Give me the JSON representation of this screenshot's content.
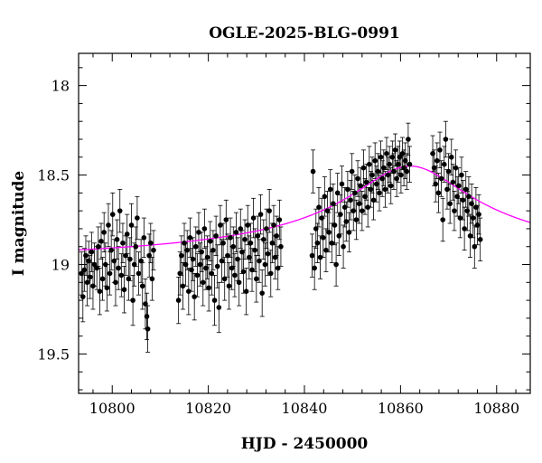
{
  "chart_data": {
    "type": "scatter",
    "title": "OGLE-2025-BLG-0991",
    "xlabel": "HJD - 2450000",
    "ylabel": "I magnitude",
    "xlim": [
      10793,
      10887
    ],
    "ylim": [
      19.72,
      17.82
    ],
    "y_inverted": true,
    "x_ticks": [
      10800,
      10820,
      10840,
      10860,
      10880
    ],
    "y_ticks": [
      18,
      18.5,
      19,
      19.5
    ],
    "x_tick_labels": [
      "10800",
      "10820",
      "10840",
      "10860",
      "10880"
    ],
    "y_tick_labels": [
      "18",
      "18.5",
      "19",
      "19.5"
    ],
    "grid": false,
    "marker_color": "#000000",
    "model_color": "#ff00ff",
    "series": [
      {
        "type": "scatter-errorbar",
        "points": [
          [
            10793.6,
            19.05,
            0.12
          ],
          [
            10793.9,
            19.18,
            0.14
          ],
          [
            10794.2,
            19.03,
            0.12
          ],
          [
            10794.5,
            18.95,
            0.11
          ],
          [
            10794.8,
            19.1,
            0.13
          ],
          [
            10795.1,
            18.98,
            0.11
          ],
          [
            10795.4,
            19.07,
            0.12
          ],
          [
            10795.7,
            18.93,
            0.11
          ],
          [
            10796.0,
            19.12,
            0.13
          ],
          [
            10796.3,
            19.0,
            0.12
          ],
          [
            10796.8,
            19.02,
            0.12
          ],
          [
            10797.1,
            18.9,
            0.11
          ],
          [
            10797.4,
            19.15,
            0.13
          ],
          [
            10797.7,
            18.87,
            0.1
          ],
          [
            10798.0,
            19.08,
            0.12
          ],
          [
            10798.3,
            18.82,
            0.11
          ],
          [
            10798.6,
            19.0,
            0.12
          ],
          [
            10798.9,
            19.13,
            0.13
          ],
          [
            10799.2,
            18.78,
            0.12
          ],
          [
            10799.5,
            19.05,
            0.12
          ],
          [
            10799.8,
            18.92,
            0.11
          ],
          [
            10800.1,
            18.72,
            0.12
          ],
          [
            10800.4,
            18.98,
            0.12
          ],
          [
            10800.7,
            19.1,
            0.13
          ],
          [
            10801.0,
            18.86,
            0.11
          ],
          [
            10801.3,
            19.02,
            0.12
          ],
          [
            10801.6,
            18.7,
            0.12
          ],
          [
            10801.9,
            19.06,
            0.12
          ],
          [
            10802.2,
            18.88,
            0.11
          ],
          [
            10802.5,
            19.14,
            0.13
          ],
          [
            10802.8,
            18.95,
            0.11
          ],
          [
            10803.1,
            18.83,
            0.11
          ],
          [
            10803.4,
            19.08,
            0.12
          ],
          [
            10803.7,
            18.97,
            0.12
          ],
          [
            10804.0,
            18.78,
            0.12
          ],
          [
            10804.3,
            19.2,
            0.14
          ],
          [
            10804.6,
            19.0,
            0.12
          ],
          [
            10804.9,
            18.9,
            0.11
          ],
          [
            10805.2,
            18.74,
            0.12
          ],
          [
            10805.5,
            19.05,
            0.12
          ],
          [
            10806.0,
            18.98,
            0.12
          ],
          [
            10806.3,
            19.12,
            0.13
          ],
          [
            10806.6,
            18.85,
            0.11
          ],
          [
            10806.9,
            19.22,
            0.14
          ],
          [
            10807.2,
            19.29,
            0.13
          ],
          [
            10807.4,
            19.36,
            0.13
          ],
          [
            10807.7,
            18.95,
            0.12
          ],
          [
            10808.0,
            18.88,
            0.11
          ],
          [
            10808.3,
            19.08,
            0.12
          ],
          [
            10808.6,
            18.92,
            0.11
          ],
          [
            10813.8,
            19.2,
            0.13
          ],
          [
            10814.1,
            19.05,
            0.12
          ],
          [
            10814.4,
            18.95,
            0.11
          ],
          [
            10814.7,
            19.12,
            0.13
          ],
          [
            10815.0,
            18.88,
            0.11
          ],
          [
            10815.3,
            19.0,
            0.12
          ],
          [
            10815.6,
            18.92,
            0.11
          ],
          [
            10815.9,
            19.15,
            0.13
          ],
          [
            10816.2,
            18.85,
            0.11
          ],
          [
            10816.5,
            19.03,
            0.12
          ],
          [
            10816.8,
            18.97,
            0.12
          ],
          [
            10817.1,
            19.18,
            0.13
          ],
          [
            10817.4,
            18.9,
            0.11
          ],
          [
            10817.7,
            19.06,
            0.12
          ],
          [
            10818.0,
            18.82,
            0.11
          ],
          [
            10818.3,
            19.0,
            0.12
          ],
          [
            10818.6,
            18.93,
            0.11
          ],
          [
            10818.9,
            19.1,
            0.13
          ],
          [
            10819.2,
            18.8,
            0.11
          ],
          [
            10819.5,
            19.02,
            0.12
          ],
          [
            10819.8,
            18.96,
            0.12
          ],
          [
            10820.1,
            19.13,
            0.13
          ],
          [
            10820.4,
            18.87,
            0.11
          ],
          [
            10820.7,
            19.05,
            0.12
          ],
          [
            10821.0,
            18.92,
            0.11
          ],
          [
            10821.3,
            19.2,
            0.14
          ],
          [
            10821.6,
            18.84,
            0.11
          ],
          [
            10821.9,
            19.01,
            0.12
          ],
          [
            10822.2,
            19.24,
            0.14
          ],
          [
            10822.5,
            18.78,
            0.11
          ],
          [
            10822.8,
            18.98,
            0.12
          ],
          [
            10823.1,
            18.88,
            0.11
          ],
          [
            10823.4,
            19.08,
            0.12
          ],
          [
            10823.7,
            18.75,
            0.11
          ],
          [
            10824.0,
            18.95,
            0.12
          ],
          [
            10824.3,
            19.12,
            0.13
          ],
          [
            10824.6,
            18.85,
            0.11
          ],
          [
            10824.9,
            19.02,
            0.12
          ],
          [
            10825.2,
            18.9,
            0.11
          ],
          [
            10825.5,
            19.06,
            0.12
          ],
          [
            10825.8,
            18.82,
            0.11
          ],
          [
            10826.1,
            18.97,
            0.12
          ],
          [
            10826.4,
            19.1,
            0.13
          ],
          [
            10826.7,
            18.8,
            0.11
          ],
          [
            10827.0,
            18.93,
            0.12
          ],
          [
            10827.3,
            19.04,
            0.12
          ],
          [
            10827.6,
            18.86,
            0.11
          ],
          [
            10827.9,
            19.15,
            0.13
          ],
          [
            10828.2,
            18.78,
            0.11
          ],
          [
            10828.5,
            18.96,
            0.12
          ],
          [
            10828.8,
            18.88,
            0.11
          ],
          [
            10829.1,
            19.03,
            0.12
          ],
          [
            10829.4,
            18.74,
            0.11
          ],
          [
            10829.7,
            18.92,
            0.12
          ],
          [
            10830.0,
            19.08,
            0.13
          ],
          [
            10830.3,
            18.84,
            0.11
          ],
          [
            10830.6,
            18.98,
            0.12
          ],
          [
            10830.9,
            18.72,
            0.11
          ],
          [
            10831.2,
            19.16,
            0.13
          ],
          [
            10831.5,
            18.86,
            0.11
          ],
          [
            10831.8,
            19.0,
            0.12
          ],
          [
            10832.1,
            18.8,
            0.11
          ],
          [
            10832.4,
            18.94,
            0.12
          ],
          [
            10832.7,
            18.7,
            0.12
          ],
          [
            10833.0,
            19.05,
            0.13
          ],
          [
            10833.3,
            18.88,
            0.11
          ],
          [
            10833.6,
            18.78,
            0.11
          ],
          [
            10833.9,
            18.96,
            0.12
          ],
          [
            10834.2,
            18.84,
            0.11
          ],
          [
            10834.5,
            19.02,
            0.12
          ],
          [
            10834.8,
            18.75,
            0.11
          ],
          [
            10835.1,
            18.9,
            0.11
          ],
          [
            10841.6,
            18.95,
            0.12
          ],
          [
            10841.8,
            18.48,
            0.12
          ],
          [
            10842.1,
            19.02,
            0.12
          ],
          [
            10842.4,
            18.8,
            0.11
          ],
          [
            10842.7,
            18.88,
            0.11
          ],
          [
            10843.0,
            18.68,
            0.11
          ],
          [
            10843.3,
            18.96,
            0.12
          ],
          [
            10843.6,
            18.74,
            0.11
          ],
          [
            10843.9,
            18.85,
            0.11
          ],
          [
            10844.2,
            18.62,
            0.11
          ],
          [
            10844.5,
            18.92,
            0.12
          ],
          [
            10844.8,
            18.7,
            0.11
          ],
          [
            10845.1,
            18.82,
            0.11
          ],
          [
            10845.4,
            18.58,
            0.11
          ],
          [
            10845.7,
            18.88,
            0.11
          ],
          [
            10846.0,
            18.66,
            0.11
          ],
          [
            10846.3,
            18.78,
            0.11
          ],
          [
            10846.6,
            19.0,
            0.12
          ],
          [
            10846.9,
            18.6,
            0.11
          ],
          [
            10847.2,
            18.84,
            0.11
          ],
          [
            10847.5,
            18.72,
            0.11
          ],
          [
            10847.8,
            18.55,
            0.1
          ],
          [
            10848.1,
            18.9,
            0.12
          ],
          [
            10848.4,
            18.68,
            0.11
          ],
          [
            10848.7,
            18.76,
            0.11
          ],
          [
            10849.0,
            18.58,
            0.1
          ],
          [
            10849.3,
            18.82,
            0.11
          ],
          [
            10849.6,
            18.64,
            0.11
          ],
          [
            10849.9,
            18.48,
            0.1
          ],
          [
            10850.2,
            18.7,
            0.11
          ],
          [
            10850.5,
            18.6,
            0.1
          ],
          [
            10850.8,
            18.75,
            0.11
          ],
          [
            10851.1,
            18.52,
            0.1
          ],
          [
            10851.4,
            18.66,
            0.11
          ],
          [
            10851.7,
            18.56,
            0.1
          ],
          [
            10852.0,
            18.7,
            0.11
          ],
          [
            10852.3,
            18.46,
            0.1
          ],
          [
            10852.6,
            18.62,
            0.1
          ],
          [
            10852.9,
            18.54,
            0.1
          ],
          [
            10853.2,
            18.68,
            0.11
          ],
          [
            10853.5,
            18.44,
            0.1
          ],
          [
            10853.8,
            18.58,
            0.1
          ],
          [
            10854.1,
            18.5,
            0.1
          ],
          [
            10854.4,
            18.64,
            0.11
          ],
          [
            10854.7,
            18.42,
            0.1
          ],
          [
            10855.0,
            18.55,
            0.1
          ],
          [
            10855.3,
            18.48,
            0.1
          ],
          [
            10855.6,
            18.6,
            0.1
          ],
          [
            10855.9,
            18.4,
            0.09
          ],
          [
            10856.2,
            18.52,
            0.1
          ],
          [
            10856.5,
            18.46,
            0.1
          ],
          [
            10856.8,
            18.58,
            0.1
          ],
          [
            10857.1,
            18.38,
            0.09
          ],
          [
            10857.4,
            18.5,
            0.1
          ],
          [
            10857.7,
            18.44,
            0.1
          ],
          [
            10858.0,
            18.56,
            0.1
          ],
          [
            10858.3,
            18.4,
            0.09
          ],
          [
            10858.6,
            18.48,
            0.1
          ],
          [
            10858.9,
            18.36,
            0.09
          ],
          [
            10859.2,
            18.52,
            0.1
          ],
          [
            10859.5,
            18.44,
            0.1
          ],
          [
            10859.8,
            18.4,
            0.09
          ],
          [
            10860.1,
            18.5,
            0.1
          ],
          [
            10860.4,
            18.38,
            0.09
          ],
          [
            10860.7,
            18.46,
            0.1
          ],
          [
            10861.0,
            18.42,
            0.1
          ],
          [
            10861.3,
            18.48,
            0.1
          ],
          [
            10861.6,
            18.3,
            0.09
          ],
          [
            10861.9,
            18.44,
            0.1
          ],
          [
            10866.7,
            18.38,
            0.1
          ],
          [
            10867.0,
            18.46,
            0.1
          ],
          [
            10867.3,
            18.55,
            0.1
          ],
          [
            10867.6,
            18.42,
            0.1
          ],
          [
            10867.9,
            18.6,
            0.11
          ],
          [
            10868.2,
            18.36,
            0.1
          ],
          [
            10868.5,
            18.52,
            0.1
          ],
          [
            10868.8,
            18.75,
            0.12
          ],
          [
            10869.1,
            18.44,
            0.1
          ],
          [
            10869.4,
            18.3,
            0.1
          ],
          [
            10869.7,
            18.58,
            0.11
          ],
          [
            10870.0,
            18.48,
            0.1
          ],
          [
            10870.3,
            18.66,
            0.11
          ],
          [
            10870.6,
            18.4,
            0.1
          ],
          [
            10870.9,
            18.54,
            0.1
          ],
          [
            10871.2,
            18.7,
            0.11
          ],
          [
            10871.5,
            18.46,
            0.1
          ],
          [
            10871.8,
            18.62,
            0.11
          ],
          [
            10872.1,
            18.56,
            0.1
          ],
          [
            10872.4,
            18.74,
            0.11
          ],
          [
            10872.7,
            18.5,
            0.1
          ],
          [
            10873.0,
            18.64,
            0.11
          ],
          [
            10873.3,
            18.8,
            0.12
          ],
          [
            10873.6,
            18.58,
            0.1
          ],
          [
            10873.9,
            18.7,
            0.11
          ],
          [
            10874.2,
            18.62,
            0.11
          ],
          [
            10874.5,
            18.84,
            0.12
          ],
          [
            10874.8,
            18.66,
            0.11
          ],
          [
            10875.1,
            18.74,
            0.11
          ],
          [
            10875.4,
            18.9,
            0.12
          ],
          [
            10875.7,
            18.68,
            0.11
          ],
          [
            10876.0,
            18.78,
            0.11
          ],
          [
            10876.3,
            18.72,
            0.11
          ],
          [
            10876.6,
            18.86,
            0.12
          ]
        ]
      },
      {
        "type": "model-curve",
        "model": {
          "baseline": 19.02,
          "amplitude": 0.57,
          "t0": 10862.0,
          "width": 12.5
        }
      }
    ]
  }
}
